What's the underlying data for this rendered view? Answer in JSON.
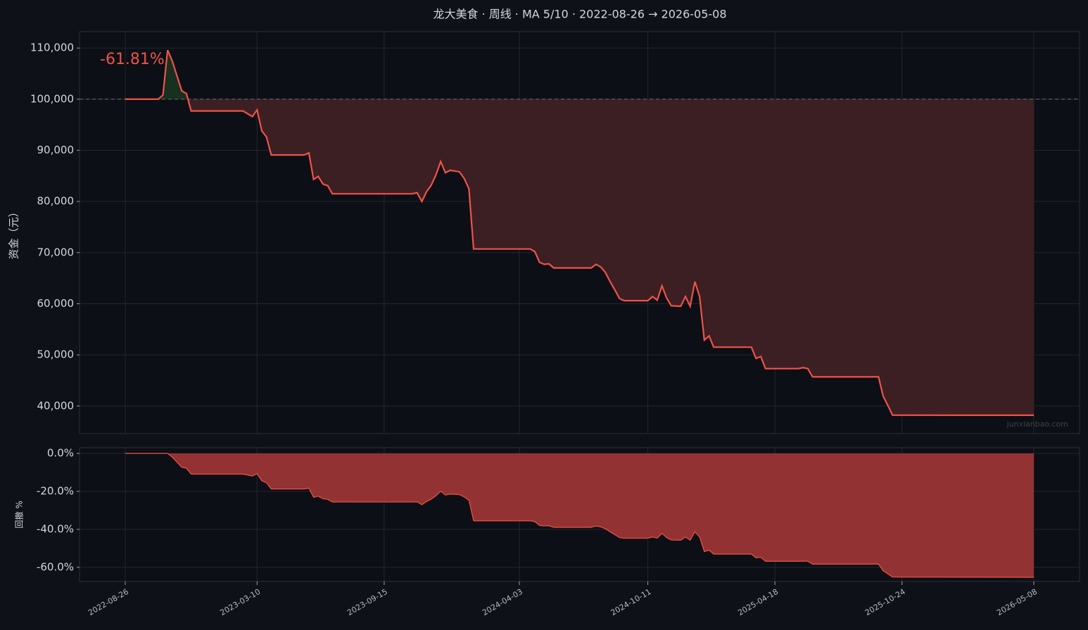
{
  "chart_data": [
    {
      "type": "line",
      "title": "龙大美食 · 周线 · MA 5/10 · 2022-08-26 → 2026-05-08",
      "ylabel": "资金（元）",
      "annotation": "-61.81%",
      "watermark": "junxianbao.com",
      "x": [
        "2022-08-26",
        "2022-10-14",
        "2022-10-21",
        "2022-10-28",
        "2022-11-04",
        "2022-11-18",
        "2022-11-25",
        "2022-12-02",
        "2023-02-17",
        "2023-03-03",
        "2023-03-10",
        "2023-03-17",
        "2023-03-24",
        "2023-03-31",
        "2023-05-19",
        "2023-05-26",
        "2023-06-02",
        "2023-06-09",
        "2023-06-16",
        "2023-06-23",
        "2023-06-30",
        "2023-10-27",
        "2023-11-03",
        "2023-11-10",
        "2023-11-17",
        "2023-11-24",
        "2023-12-01",
        "2023-12-08",
        "2023-12-15",
        "2023-12-22",
        "2024-01-05",
        "2024-01-12",
        "2024-01-19",
        "2024-01-26",
        "2024-04-19",
        "2024-04-26",
        "2024-05-03",
        "2024-05-10",
        "2024-05-17",
        "2024-05-24",
        "2024-07-19",
        "2024-07-26",
        "2024-08-02",
        "2024-08-09",
        "2024-08-16",
        "2024-08-23",
        "2024-08-30",
        "2024-09-06",
        "2024-10-11",
        "2024-10-18",
        "2024-10-25",
        "2024-11-01",
        "2024-11-08",
        "2024-11-15",
        "2024-11-29",
        "2024-12-06",
        "2024-12-13",
        "2024-12-20",
        "2024-12-27",
        "2025-01-03",
        "2025-01-10",
        "2025-01-17",
        "2025-03-14",
        "2025-03-21",
        "2025-03-28",
        "2025-04-04",
        "2025-05-23",
        "2025-05-30",
        "2025-06-06",
        "2025-06-13",
        "2025-09-19",
        "2025-09-26",
        "2025-10-03",
        "2025-10-10",
        "2026-05-08"
      ],
      "values": [
        100000,
        100000,
        100800,
        109600,
        107400,
        101600,
        101100,
        97700,
        97700,
        96600,
        97900,
        93800,
        92600,
        89100,
        89100,
        89500,
        84300,
        84900,
        83400,
        83100,
        81500,
        81500,
        81700,
        80000,
        81900,
        83200,
        85200,
        87800,
        85600,
        86100,
        85800,
        84500,
        82500,
        70700,
        70700,
        70200,
        68100,
        67700,
        67800,
        67000,
        67000,
        67700,
        67200,
        66100,
        64300,
        62700,
        61000,
        60600,
        60600,
        61400,
        60700,
        63500,
        61100,
        59600,
        59500,
        61400,
        59500,
        64300,
        61400,
        52900,
        53700,
        51500,
        51500,
        49300,
        49700,
        47300,
        47300,
        47500,
        47300,
        45700,
        45700,
        41900,
        40100,
        38200,
        38190
      ],
      "color": "#f0524a",
      "baseline": 100000,
      "fill_above_color": "#173020",
      "fill_below_color": "#3c1f22",
      "xlim": [
        "2022-06-19",
        "2026-07-15"
      ],
      "xticks": [
        "2022-08-26",
        "2023-03-10",
        "2023-09-15",
        "2024-04-03",
        "2024-10-11",
        "2025-04-18",
        "2025-10-24",
        "2026-05-08"
      ],
      "ylim": [
        34600,
        113200
      ],
      "yticks": [
        {
          "value": 40000,
          "label": "40,000"
        },
        {
          "value": 50000,
          "label": "50,000"
        },
        {
          "value": 60000,
          "label": "60,000"
        },
        {
          "value": 70000,
          "label": "70,000"
        },
        {
          "value": 80000,
          "label": "80,000"
        },
        {
          "value": 90000,
          "label": "90,000"
        },
        {
          "value": 100000,
          "label": "100,000"
        },
        {
          "value": 110000,
          "label": "110,000"
        }
      ],
      "grid": true
    },
    {
      "type": "area",
      "ylabel": "回撤 %",
      "x": [
        "2022-08-26",
        "2022-10-14",
        "2022-10-21",
        "2022-10-28",
        "2022-11-04",
        "2022-11-18",
        "2022-11-25",
        "2022-12-02",
        "2023-02-17",
        "2023-03-03",
        "2023-03-10",
        "2023-03-17",
        "2023-03-24",
        "2023-03-31",
        "2023-05-19",
        "2023-05-26",
        "2023-06-02",
        "2023-06-09",
        "2023-06-16",
        "2023-06-23",
        "2023-06-30",
        "2023-10-27",
        "2023-11-03",
        "2023-11-10",
        "2023-11-17",
        "2023-11-24",
        "2023-12-01",
        "2023-12-08",
        "2023-12-15",
        "2023-12-22",
        "2024-01-05",
        "2024-01-12",
        "2024-01-19",
        "2024-01-26",
        "2024-04-19",
        "2024-04-26",
        "2024-05-03",
        "2024-05-10",
        "2024-05-17",
        "2024-05-24",
        "2024-07-19",
        "2024-07-26",
        "2024-08-02",
        "2024-08-09",
        "2024-08-16",
        "2024-08-23",
        "2024-08-30",
        "2024-09-06",
        "2024-10-11",
        "2024-10-18",
        "2024-10-25",
        "2024-11-01",
        "2024-11-08",
        "2024-11-15",
        "2024-11-29",
        "2024-12-06",
        "2024-12-13",
        "2024-12-20",
        "2024-12-27",
        "2025-01-03",
        "2025-01-10",
        "2025-01-17",
        "2025-03-14",
        "2025-03-21",
        "2025-03-28",
        "2025-04-04",
        "2025-05-23",
        "2025-05-30",
        "2025-06-06",
        "2025-06-13",
        "2025-09-19",
        "2025-09-26",
        "2025-10-03",
        "2025-10-10",
        "2026-05-08"
      ],
      "values": [
        0,
        0,
        0,
        0,
        -2.0,
        -7.3,
        -7.8,
        -10.9,
        -10.9,
        -11.9,
        -10.7,
        -14.4,
        -15.5,
        -18.7,
        -18.7,
        -18.3,
        -23.1,
        -22.5,
        -23.9,
        -24.2,
        -25.6,
        -25.6,
        -25.5,
        -27.0,
        -25.3,
        -24.1,
        -22.3,
        -19.9,
        -21.9,
        -21.4,
        -21.7,
        -22.9,
        -24.7,
        -35.5,
        -35.5,
        -35.9,
        -37.9,
        -38.2,
        -38.1,
        -38.9,
        -38.9,
        -38.2,
        -38.7,
        -39.7,
        -41.3,
        -42.8,
        -44.3,
        -44.7,
        -44.7,
        -44.0,
        -44.6,
        -42.1,
        -44.3,
        -45.6,
        -45.7,
        -44.0,
        -45.7,
        -41.3,
        -44.0,
        -51.7,
        -51.0,
        -53.0,
        -53.0,
        -55.0,
        -54.7,
        -56.8,
        -56.8,
        -56.7,
        -56.8,
        -58.3,
        -58.3,
        -61.8,
        -63.4,
        -65.1,
        -65.2
      ],
      "color": "#f0524a",
      "fill_color": "#9a3535",
      "xlim": [
        "2022-06-19",
        "2026-07-15"
      ],
      "xticks": [
        "2022-08-26",
        "2023-03-10",
        "2023-09-15",
        "2024-04-03",
        "2024-10-11",
        "2025-04-18",
        "2025-10-24",
        "2026-05-08"
      ],
      "ylim": [
        -67.4,
        3.0
      ],
      "yticks": [
        {
          "value": -60,
          "label": "-60.0%"
        },
        {
          "value": -40,
          "label": "-40.0%"
        },
        {
          "value": -20,
          "label": "-20.0%"
        },
        {
          "value": 0,
          "label": "0.0%"
        }
      ],
      "grid": true
    }
  ]
}
